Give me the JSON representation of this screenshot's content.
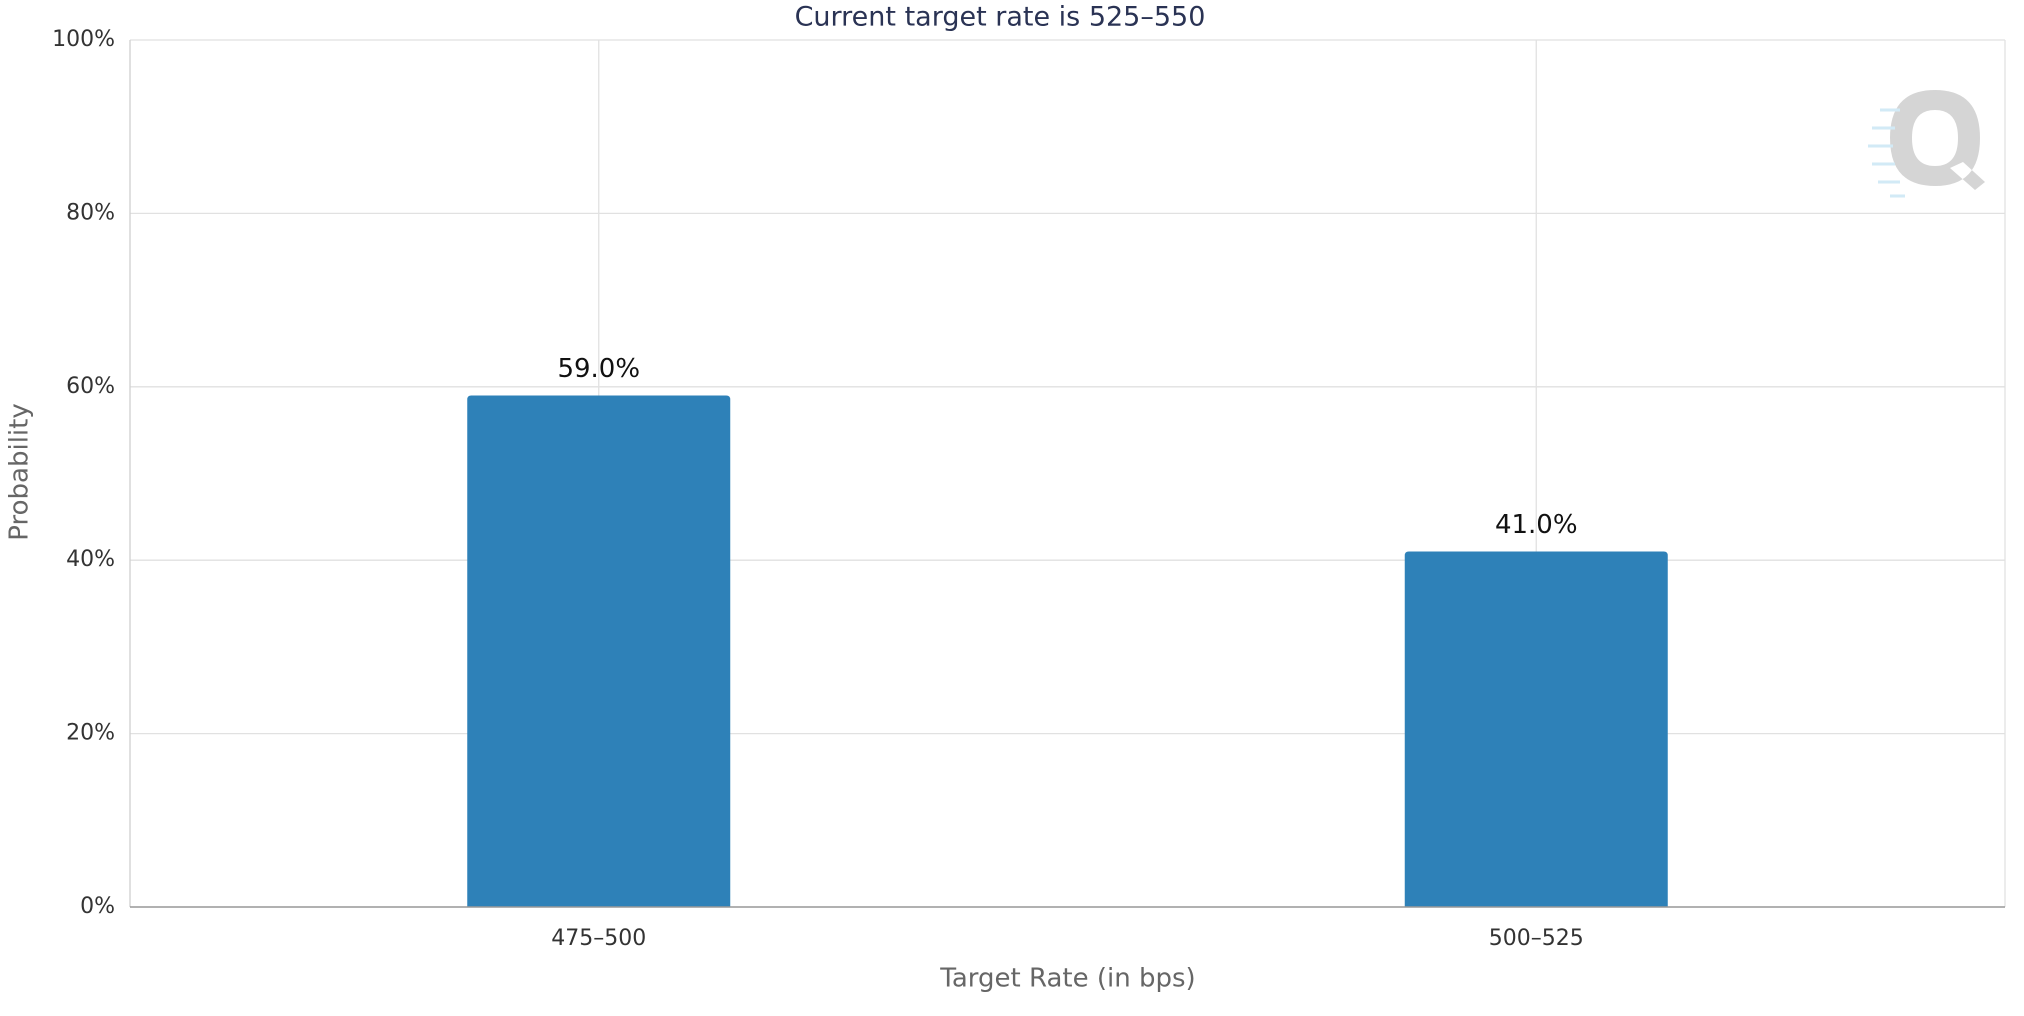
{
  "chart_data": {
    "type": "bar",
    "title": "Current target rate is 525–550",
    "x_label": "Target Rate (in bps)",
    "y_label": "Probability",
    "categories": [
      "475–500",
      "500–525"
    ],
    "values": [
      59,
      41
    ],
    "value_labels": [
      "59.0%",
      "41.0%"
    ],
    "color": "#2e81b8",
    "ylim": [
      0,
      100
    ],
    "yticks": [
      {
        "value": 0,
        "label": "0%"
      },
      {
        "value": 20,
        "label": "20%"
      },
      {
        "value": 40,
        "label": "40%"
      },
      {
        "value": 60,
        "label": "60%"
      },
      {
        "value": 80,
        "label": "80%"
      },
      {
        "value": 100,
        "label": "100%"
      }
    ],
    "grid": true
  }
}
